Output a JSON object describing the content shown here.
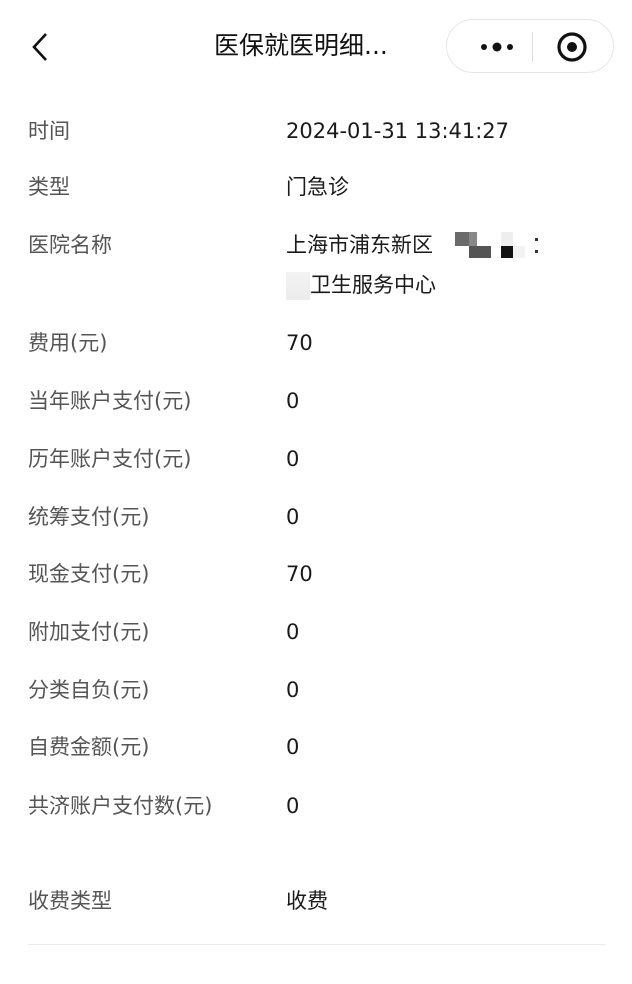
{
  "nav": {
    "title": "医保就医明细...",
    "back_icon": "chevron-left-icon",
    "more_icon": "more-dots-icon",
    "close_icon": "target-circle-icon"
  },
  "details": [
    {
      "label": "时间",
      "value": "2024-01-31 13:41:27"
    },
    {
      "label": "类型",
      "value": "门急诊"
    },
    {
      "label": "医院名称",
      "value_line1": "上海市浦东新区",
      "value_line2": "卫生服务中心"
    },
    {
      "label": "费用(元)",
      "value": "70"
    },
    {
      "label": "当年账户支付(元)",
      "value": "0"
    },
    {
      "label": "历年账户支付(元)",
      "value": "0"
    },
    {
      "label": "统筹支付(元)",
      "value": "0"
    },
    {
      "label": "现金支付(元)",
      "value": "70"
    },
    {
      "label": "附加支付(元)",
      "value": "0"
    },
    {
      "label": "分类自负(元)",
      "value": "0"
    },
    {
      "label": "自费金额(元)",
      "value": "0"
    },
    {
      "label": "共济账户支付数(元)",
      "value": "0"
    },
    {
      "label": "收费类型",
      "value": "收费"
    }
  ]
}
